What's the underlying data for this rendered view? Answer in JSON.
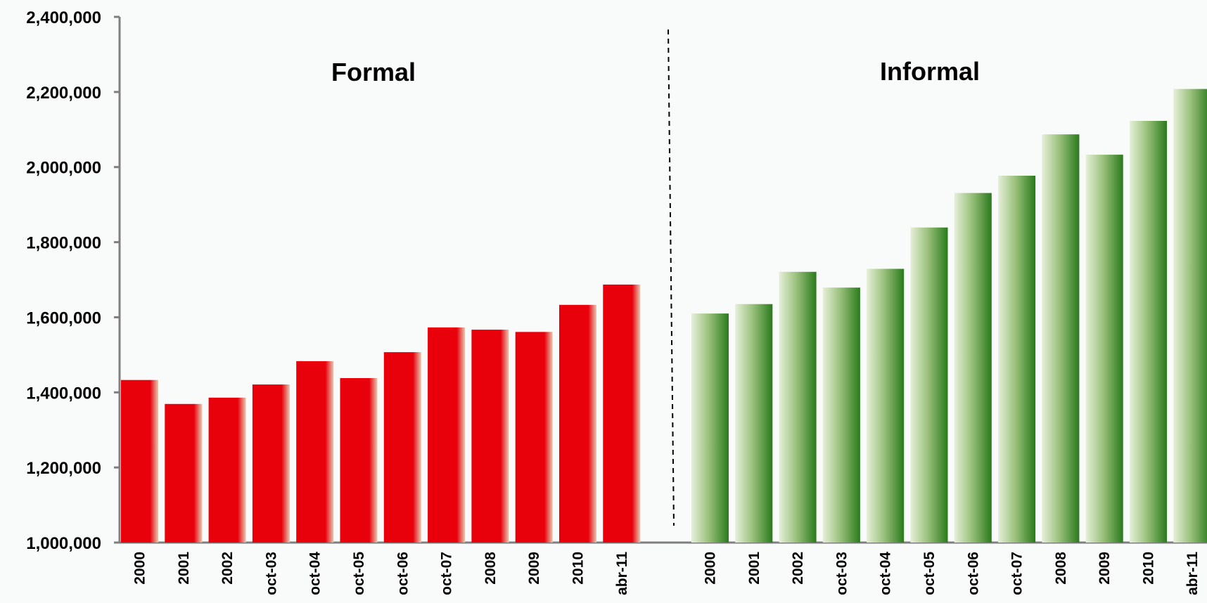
{
  "chart_data": {
    "type": "bar",
    "ylim": [
      1000000,
      2400000
    ],
    "yticks": [
      "1,000,000",
      "1,200,000",
      "1,400,000",
      "1,600,000",
      "1,800,000",
      "2,000,000",
      "2,200,000",
      "2,400,000"
    ],
    "ytick_values": [
      1000000,
      1200000,
      1400000,
      1600000,
      1800000,
      2000000,
      2200000,
      2400000
    ],
    "grid": false,
    "categories": [
      "2000",
      "2001",
      "2002",
      "oct-03",
      "oct-04",
      "oct-05",
      "oct-06",
      "oct-07",
      "2008",
      "2009",
      "2010",
      "abr-11"
    ],
    "series": [
      {
        "name": "Formal",
        "color": "#e8000b",
        "values": [
          1433000,
          1369000,
          1386000,
          1421000,
          1483000,
          1438000,
          1507000,
          1573000,
          1567000,
          1561000,
          1633000,
          1687000
        ]
      },
      {
        "name": "Informal",
        "color": "#2e7d1f",
        "values": [
          1610000,
          1635000,
          1721000,
          1679000,
          1729000,
          1839000,
          1931000,
          1977000,
          2087000,
          2033000,
          2123000,
          2208000
        ]
      }
    ]
  }
}
